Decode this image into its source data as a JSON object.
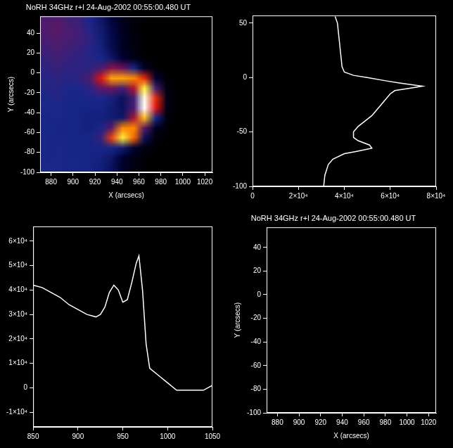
{
  "chart_data": [
    {
      "type": "heatmap",
      "title": "NoRH 34GHz r+l 24-Aug-2002 00:55:00.480 UT",
      "x_label": "X (arcsecs)",
      "y_label": "Y (arcsecs)",
      "xlim": [
        870,
        1027
      ],
      "ylim": [
        -100,
        57
      ],
      "xticks": [
        880,
        900,
        920,
        940,
        960,
        980,
        1000,
        1020
      ],
      "yticks": [
        -100,
        -80,
        -60,
        -40,
        -20,
        0,
        20,
        40
      ],
      "x": [
        875,
        885,
        895,
        905,
        915,
        925,
        935,
        945,
        955,
        965,
        975,
        985,
        995,
        1005,
        1015,
        1025
      ],
      "y": [
        55,
        45,
        35,
        25,
        15,
        5,
        -5,
        -15,
        -25,
        -35,
        -45,
        -55,
        -65,
        -75,
        -85,
        -95
      ],
      "cells": [
        [
          36000,
          37000,
          35000,
          34000,
          30000,
          24000,
          16000,
          8000,
          3000,
          1000,
          0,
          0,
          0,
          0,
          0,
          0
        ],
        [
          37000,
          38000,
          36000,
          35000,
          32000,
          26000,
          18000,
          9000,
          3000,
          1000,
          0,
          0,
          0,
          0,
          0,
          0
        ],
        [
          36000,
          37000,
          36000,
          35000,
          33000,
          27000,
          19000,
          10000,
          4000,
          1000,
          0,
          0,
          0,
          0,
          0,
          0
        ],
        [
          35000,
          36000,
          35000,
          34000,
          32000,
          28000,
          20000,
          11000,
          4000,
          1000,
          0,
          0,
          0,
          0,
          0,
          0
        ],
        [
          34000,
          35000,
          34000,
          33000,
          32000,
          30000,
          24000,
          14000,
          6000,
          2000,
          0,
          0,
          0,
          0,
          0,
          0
        ],
        [
          33000,
          34000,
          33000,
          33000,
          33000,
          36000,
          42000,
          40000,
          30000,
          12000,
          2000,
          0,
          0,
          0,
          0,
          0
        ],
        [
          32000,
          33000,
          32000,
          33000,
          36000,
          48000,
          60000,
          60000,
          58000,
          50000,
          14000,
          2000,
          0,
          0,
          0,
          0
        ],
        [
          32000,
          32000,
          31000,
          31000,
          33000,
          38000,
          40000,
          35000,
          45000,
          66000,
          35000,
          4000,
          0,
          0,
          0,
          0
        ],
        [
          31000,
          32000,
          30000,
          30000,
          30000,
          31000,
          28000,
          22000,
          35000,
          72000,
          50000,
          6000,
          1000,
          0,
          0,
          0
        ],
        [
          31000,
          31000,
          30000,
          29000,
          29000,
          29000,
          26000,
          22000,
          36000,
          73000,
          48000,
          6000,
          1000,
          0,
          0,
          0
        ],
        [
          30000,
          31000,
          30000,
          29000,
          28000,
          28000,
          26000,
          24000,
          44000,
          62000,
          30000,
          4000,
          0,
          0,
          0,
          0
        ],
        [
          30000,
          30000,
          29000,
          29000,
          28000,
          30000,
          38000,
          58000,
          58000,
          38000,
          10000,
          2000,
          0,
          0,
          0,
          0
        ],
        [
          30000,
          30000,
          30000,
          29000,
          30000,
          34000,
          52000,
          66000,
          55000,
          22000,
          4000,
          1000,
          0,
          0,
          0,
          0
        ],
        [
          30000,
          31000,
          30000,
          29000,
          29000,
          30000,
          30000,
          26000,
          14000,
          5000,
          1000,
          0,
          0,
          0,
          0,
          0
        ],
        [
          30000,
          31000,
          30000,
          30000,
          29000,
          28000,
          24000,
          14000,
          6000,
          2000,
          0,
          0,
          0,
          0,
          0,
          0
        ],
        [
          31000,
          31000,
          30000,
          30000,
          29000,
          27000,
          22000,
          12000,
          5000,
          1000,
          0,
          0,
          0,
          0,
          0,
          0
        ]
      ]
    },
    {
      "type": "line",
      "xlim": [
        0,
        80000
      ],
      "ylim": [
        -100,
        57
      ],
      "xticks": [
        0,
        {
          "value": 20000,
          "label": "2×10⁴"
        },
        {
          "value": 40000,
          "label": "4×10⁴"
        },
        {
          "value": 60000,
          "label": "6×10⁴"
        },
        {
          "value": 80000,
          "label": "8×10⁴"
        }
      ],
      "yticks": [
        -100,
        -50,
        0,
        50
      ],
      "series": [
        {
          "color": "#ffffff",
          "x": [
            36000,
            37000,
            37500,
            38000,
            38500,
            39000,
            40000,
            44000,
            50000,
            58000,
            64000,
            74000,
            68000,
            62000,
            60000,
            58000,
            56000,
            54000,
            52000,
            49000,
            46000,
            44000,
            44000,
            46000,
            51000,
            52000,
            45000,
            40000,
            35000,
            33000,
            31500,
            31000
          ],
          "y": [
            56,
            50,
            40,
            30,
            20,
            10,
            5,
            2,
            0,
            -3,
            -5,
            -8,
            -10,
            -12,
            -15,
            -20,
            -25,
            -30,
            -35,
            -40,
            -45,
            -50,
            -55,
            -58,
            -62,
            -65,
            -68,
            -70,
            -75,
            -80,
            -90,
            -100
          ]
        }
      ]
    },
    {
      "type": "line",
      "xlim": [
        850,
        1050
      ],
      "ylim": [
        -16000,
        66000
      ],
      "xticks": [
        850,
        900,
        950,
        1000,
        1050
      ],
      "yticks": [
        {
          "value": -10000,
          "label": "-1×10⁴"
        },
        0,
        {
          "value": 10000,
          "label": "1×10⁴"
        },
        {
          "value": 20000,
          "label": "2×10⁴"
        },
        {
          "value": 30000,
          "label": "3×10⁴"
        },
        {
          "value": 40000,
          "label": "4×10⁴"
        },
        {
          "value": 50000,
          "label": "5×10⁴"
        },
        {
          "value": 60000,
          "label": "6×10⁴"
        }
      ],
      "series": [
        {
          "color": "#ffffff",
          "x": [
            850,
            860,
            870,
            880,
            890,
            900,
            910,
            920,
            925,
            930,
            935,
            940,
            945,
            950,
            955,
            960,
            965,
            968,
            972,
            976,
            980,
            990,
            1000,
            1010,
            1020,
            1030,
            1040,
            1050
          ],
          "y": [
            42000,
            41000,
            39000,
            37000,
            34000,
            32000,
            30000,
            29000,
            30000,
            33000,
            39000,
            42000,
            40000,
            35000,
            36000,
            43000,
            51000,
            54000,
            40000,
            18000,
            8000,
            5000,
            2000,
            -1000,
            -1000,
            -1000,
            -1000,
            1000
          ]
        }
      ]
    },
    {
      "type": "scatter",
      "title": "NoRH 34GHz r+l 24-Aug-2002 00:55:00.480 UT",
      "x_label": "X (arcsecs)",
      "y_label": "Y (arcsecs)",
      "xlim": [
        870,
        1027
      ],
      "ylim": [
        -100,
        57
      ],
      "xticks": [
        880,
        900,
        920,
        940,
        960,
        980,
        1000,
        1020
      ],
      "yticks": [
        -100,
        -80,
        -60,
        -40,
        -20,
        0,
        20,
        40
      ],
      "series": []
    }
  ]
}
